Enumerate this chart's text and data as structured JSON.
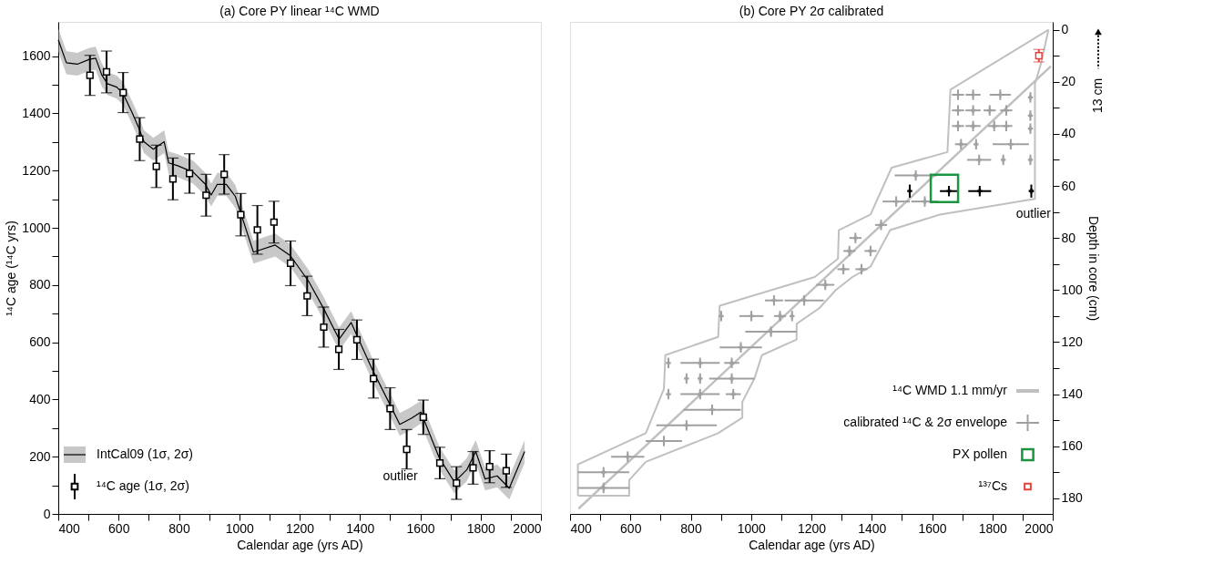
{
  "chart_data": [
    {
      "type": "scatter",
      "title": "(a) Core PY linear ¹⁴C WMD",
      "xlabel": "Calendar age (yrs AD)",
      "ylabel": "¹⁴C age (¹⁴C yrs)",
      "xlim": [
        400,
        2000
      ],
      "xticks": [
        400,
        {
          "value": 500,
          "label": null
        },
        600,
        {
          "value": 700,
          "label": null
        },
        800,
        {
          "value": 900,
          "label": null
        },
        1000,
        {
          "value": 1100,
          "label": null
        },
        1200,
        {
          "value": 1300,
          "label": null
        },
        1400,
        {
          "value": 1500,
          "label": null
        },
        1600,
        {
          "value": 1700,
          "label": null
        },
        1800,
        {
          "value": 1900,
          "label": null
        },
        2000
      ],
      "ylim": [
        0,
        1720
      ],
      "yticks": [
        0,
        {
          "value": 100,
          "label": null
        },
        200,
        {
          "value": 300,
          "label": null
        },
        400,
        {
          "value": 500,
          "label": null
        },
        600,
        {
          "value": 700,
          "label": null
        },
        800,
        {
          "value": 900,
          "label": null
        },
        1000,
        {
          "value": 1100,
          "label": null
        },
        1200,
        {
          "value": 1300,
          "label": null
        },
        1400,
        {
          "value": 1500,
          "label": null
        },
        1600
      ],
      "grid": false,
      "legend": "bottom left",
      "series": [
        {
          "name": "IntCal09 (1σ, 2σ)",
          "type": "line",
          "color": "#000000",
          "x": [
            400,
            427,
            463,
            503,
            524,
            544,
            563,
            594,
            615,
            645,
            665,
            684,
            715,
            751,
            766,
            796,
            847,
            887,
            907,
            927,
            957,
            987,
            1047,
            1119,
            1169,
            1230,
            1280,
            1331,
            1371,
            1391,
            1441,
            1502,
            1532,
            1572,
            1602,
            1663,
            1713,
            1754,
            1784,
            1815,
            1855,
            1895,
            1946
          ],
          "values": [
            1657,
            1577,
            1572,
            1589,
            1593,
            1535,
            1504,
            1492,
            1469,
            1402,
            1354,
            1301,
            1275,
            1301,
            1227,
            1217,
            1195,
            1153,
            1115,
            1152,
            1152,
            1110,
            915,
            940,
            903,
            813,
            717,
            611,
            669,
            621,
            505,
            377,
            313,
            335,
            356,
            196,
            112,
            154,
            218,
            122,
            133,
            90,
            218
          ],
          "lower": [
            1617,
            1537,
            1532,
            1549,
            1553,
            1495,
            1464,
            1452,
            1429,
            1362,
            1314,
            1261,
            1235,
            1261,
            1187,
            1177,
            1155,
            1113,
            1075,
            1112,
            1112,
            1070,
            875,
            900,
            863,
            773,
            677,
            571,
            629,
            581,
            465,
            337,
            273,
            295,
            316,
            156,
            72,
            114,
            178,
            82,
            93,
            50,
            178
          ],
          "upper": [
            1697,
            1617,
            1612,
            1629,
            1633,
            1575,
            1544,
            1532,
            1509,
            1442,
            1394,
            1341,
            1315,
            1341,
            1267,
            1257,
            1235,
            1193,
            1155,
            1192,
            1192,
            1150,
            955,
            980,
            943,
            853,
            757,
            651,
            709,
            661,
            545,
            417,
            353,
            375,
            396,
            236,
            152,
            194,
            258,
            162,
            173,
            130,
            258
          ]
        },
        {
          "name": "¹⁴C age (1σ, 2σ)",
          "marker": "square",
          "color": "#000000",
          "x": [
            505,
            560,
            615,
            670,
            725,
            780,
            835,
            890,
            950,
            1005,
            1060,
            1115,
            1170,
            1225,
            1280,
            1330,
            1390,
            1445,
            1500,
            1555,
            1610,
            1665,
            1720,
            1775,
            1830,
            1885
          ],
          "values": [
            1533,
            1545,
            1473,
            1310,
            1215,
            1171,
            1190,
            1114,
            1187,
            1046,
            993,
            1020,
            876,
            762,
            653,
            575,
            609,
            473,
            368,
            226,
            338,
            178,
            108,
            161,
            165,
            151
          ],
          "errors": [
            70,
            73,
            70,
            75,
            74,
            73,
            69,
            73,
            69,
            74,
            85,
            73,
            78,
            69,
            70,
            70,
            69,
            68,
            73,
            69,
            60,
            55,
            57,
            57,
            56,
            58
          ]
        }
      ],
      "annotations": [
        {
          "text": "outlier",
          "x": 1555,
          "y": 226
        }
      ]
    },
    {
      "type": "line",
      "title": "(b) Core PY 2σ calibrated",
      "xlabel": "Calendar age (yrs AD)",
      "y2label": "Depth in core (cm)",
      "xlim": [
        400,
        2000
      ],
      "xticks": [
        400,
        {
          "value": 500,
          "label": null
        },
        600,
        {
          "value": 700,
          "label": null
        },
        800,
        {
          "value": 900,
          "label": null
        },
        1000,
        {
          "value": 1100,
          "label": null
        },
        1200,
        {
          "value": 1300,
          "label": null
        },
        1400,
        {
          "value": 1500,
          "label": null
        },
        1600,
        {
          "value": 1700,
          "label": null
        },
        1800,
        {
          "value": 1900,
          "label": null
        },
        2000
      ],
      "y2lim": [
        186,
        -3
      ],
      "y2ticks": [
        0,
        {
          "value": 10,
          "label": null
        },
        20,
        {
          "value": 30,
          "label": null
        },
        40,
        {
          "value": 50,
          "label": null
        },
        60,
        {
          "value": 70,
          "label": null
        },
        80,
        {
          "value": 90,
          "label": null
        },
        100,
        {
          "value": 110,
          "label": null
        },
        120,
        {
          "value": 130,
          "label": null
        },
        140,
        {
          "value": 150,
          "label": null
        },
        160,
        {
          "value": 170,
          "label": null
        },
        180
      ],
      "grid": false,
      "legend": "bottom right",
      "series": [
        {
          "name": "¹⁴C WMD 1.1 mm/yr",
          "axis": "y2",
          "color": "#c0c0c0",
          "x": [
            428,
            1994
          ],
          "values": [
            184,
            14
          ]
        },
        {
          "axis": "y2",
          "color": "#c0c0c0",
          "x": [
            426,
            426,
            651,
            711,
            716,
            891,
            896,
            1211,
            1288,
            1291,
            1396,
            1466,
            1651,
            1661,
            1986
          ],
          "values": [
            179,
            167,
            155,
            138,
            125,
            118,
            106,
            95,
            88,
            77,
            71,
            53,
            47,
            23,
            0
          ]
        },
        {
          "axis": "y2",
          "color": "#c0c0c0",
          "x": [
            426,
            596,
            596,
            651,
            891,
            971,
            971,
            1011,
            1036,
            1151,
            1151,
            1226,
            1281,
            1336,
            1396,
            1461,
            1626,
            1941,
            1941,
            1961,
            1986
          ],
          "values": [
            179,
            179,
            173,
            166,
            155,
            149,
            143,
            134,
            125,
            119,
            113,
            107,
            100,
            95,
            91,
            77,
            71,
            65,
            21,
            13,
            0
          ]
        },
        {
          "name": "calibrated ¹⁴C & 2σ envelope",
          "type": "scatter",
          "axis": "y2",
          "marker": "cross",
          "color": "#a0a0a0",
          "x": [
            1686,
            1736,
            1826,
            1926,
            1686,
            1736,
            1791,
            1846,
            1926,
            1686,
            1736,
            1806,
            1846,
            1926,
            1696,
            1746,
            1861,
            1756,
            1836,
            1926,
            1546,
            1481,
            1576,
            1431,
            1346,
            1326,
            1396,
            1366,
            1076,
            1176,
            1246,
            1306,
            1001,
            1096,
            1136,
            901,
            1066,
            966,
            726,
            831,
            936,
            786,
            831,
            936,
            726,
            831,
            941,
            871,
            786,
            711,
            591,
            511,
            511
          ],
          "values": [
            25,
            25,
            25,
            26,
            31,
            31,
            31,
            31,
            33,
            37,
            37,
            37,
            37,
            38,
            44,
            44,
            44,
            50,
            50,
            50,
            56,
            66,
            66,
            75,
            80,
            85,
            85,
            92,
            104,
            104,
            98,
            92,
            110,
            110,
            110,
            110,
            116,
            122,
            128,
            128,
            128,
            134,
            134,
            134,
            140,
            140,
            140,
            146,
            152,
            158,
            164,
            170,
            176
          ],
          "xerrors": [
            20,
            25,
            35,
            null,
            20,
            25,
            20,
            20,
            null,
            20,
            25,
            20,
            20,
            null,
            20,
            null,
            60,
            40,
            null,
            null,
            70,
            45,
            45,
            20,
            20,
            20,
            20,
            20,
            30,
            65,
            30,
            20,
            40,
            20,
            null,
            null,
            85,
            70,
            null,
            65,
            25,
            null,
            null,
            75,
            null,
            65,
            25,
            95,
            100,
            60,
            55,
            85,
            85
          ],
          "errors": [
            2,
            2,
            2,
            2,
            2,
            2,
            2,
            2,
            2,
            2,
            2,
            2,
            2,
            2,
            2,
            2,
            2,
            2,
            2,
            2,
            2,
            2,
            2,
            2,
            2,
            2,
            2,
            2,
            2,
            2,
            2,
            2,
            2,
            2,
            2,
            2,
            2,
            2,
            2,
            2,
            2,
            2,
            2,
            2,
            2,
            2,
            2,
            2,
            2,
            2,
            2,
            2,
            2
          ]
        },
        {
          "type": "scatter",
          "axis": "y2",
          "marker": "cross",
          "color": "#000000",
          "x": [
            1526,
            1656,
            1758,
            1929
          ],
          "values": [
            62,
            62,
            62,
            62
          ],
          "xerrors": [
            null,
            30,
            38,
            8
          ],
          "errors": [
            2.5,
            2,
            2,
            2.5
          ]
        },
        {
          "name": "PX pollen",
          "type": "scatter",
          "axis": "y2",
          "marker": "square",
          "color": "#1a9641",
          "x": [
            1641
          ],
          "values": [
            61
          ]
        },
        {
          "name": "¹³⁷Cs",
          "type": "scatter",
          "axis": "y2",
          "marker": "square",
          "color": "#e8413c",
          "x": [
            1954
          ],
          "values": [
            10
          ],
          "errors": [
            2.4
          ]
        }
      ],
      "annotations": [
        "outlier",
        "13 cm"
      ]
    }
  ]
}
